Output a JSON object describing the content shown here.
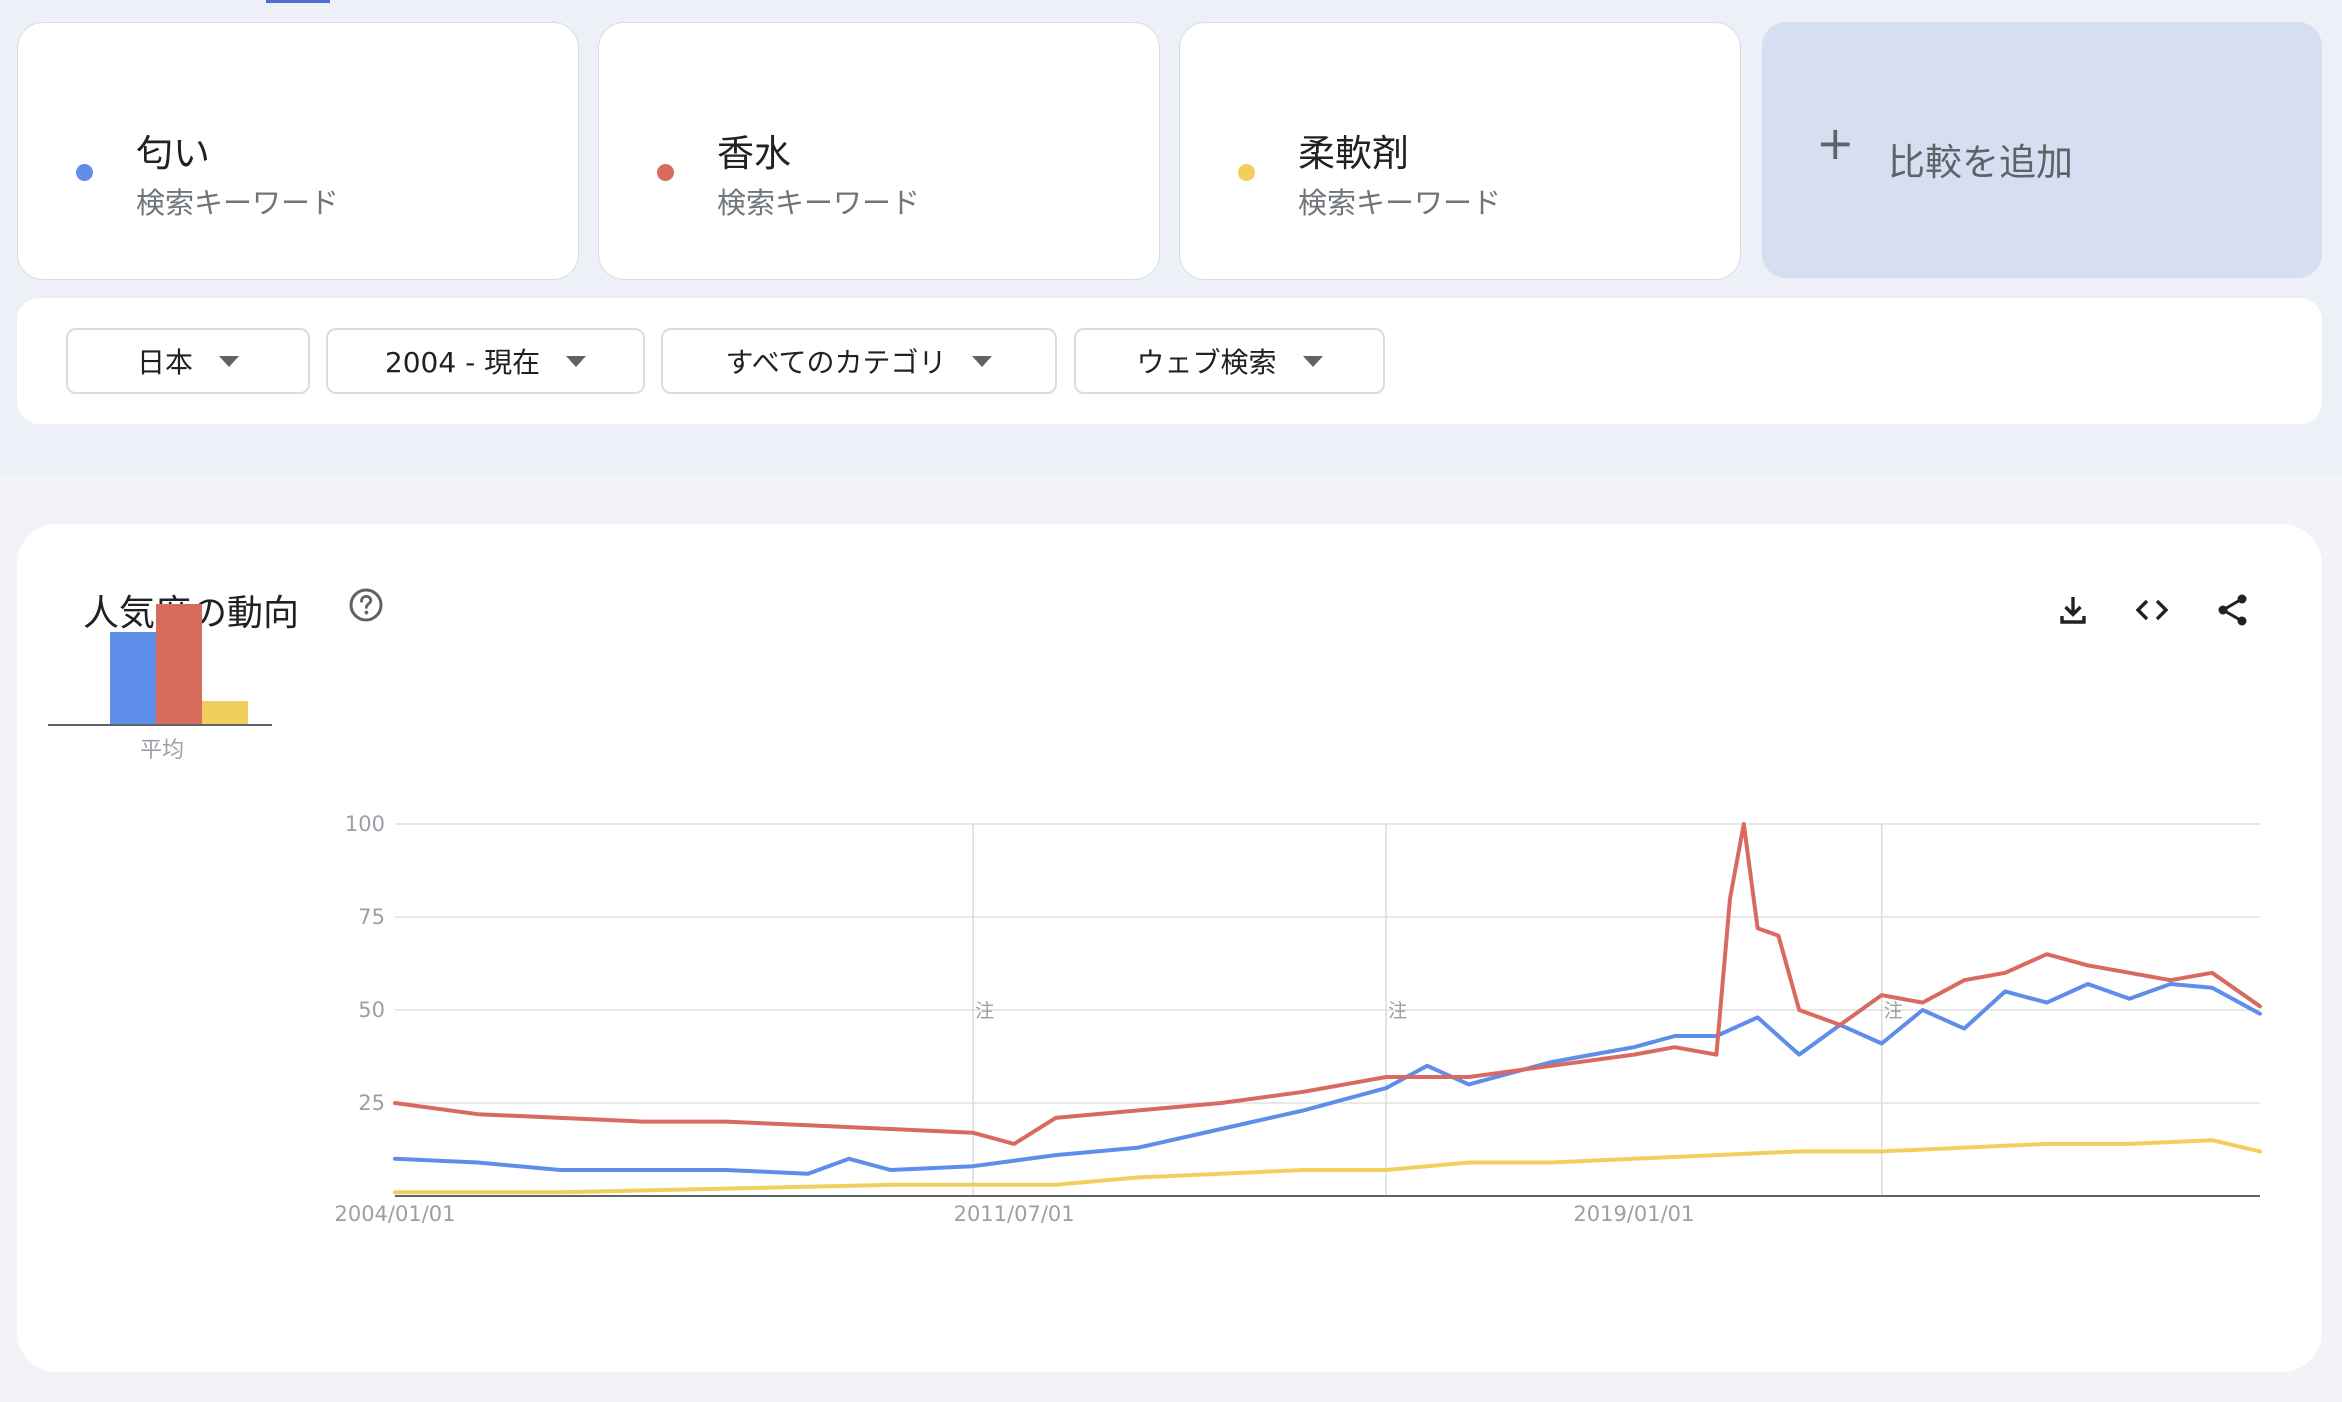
{
  "keywords": [
    {
      "term": "匂い",
      "type": "検索キーワード",
      "color": "#5f8dea"
    },
    {
      "term": "香水",
      "type": "検索キーワード",
      "color": "#d86a5e"
    },
    {
      "term": "柔軟剤",
      "type": "検索キーワード",
      "color": "#f2ce5e"
    }
  ],
  "add_compare": {
    "plus": "+",
    "label": "比較を追加"
  },
  "filters": {
    "region": "日本",
    "period": "2004 - 現在",
    "category": "すべてのカテゴリ",
    "search_type": "ウェブ検索"
  },
  "panel": {
    "title": "人気度の動向",
    "help_icon": "help-circle-icon",
    "actions": [
      "download-icon",
      "embed-code-icon",
      "share-icon"
    ]
  },
  "averages": {
    "label": "平均",
    "values": [
      26,
      34,
      7
    ]
  },
  "chart_data": {
    "type": "line",
    "y_ticks": [
      "100",
      "75",
      "50",
      "25"
    ],
    "ylim": [
      0,
      100
    ],
    "x_tick_labels": [
      "2004/01/01",
      "2011/07/01",
      "2019/01/01"
    ],
    "x_tick_dates": [
      "2004-01-01",
      "2011-07-01",
      "2019-01-01"
    ],
    "x_range": [
      "2004-01-01",
      "2026-08-01"
    ],
    "note_marker": "注",
    "note_dates": [
      "2011-01-01",
      "2016-01-01",
      "2022-01-01"
    ],
    "grid": true,
    "series": [
      {
        "name": "匂い",
        "color": "#5f8dea",
        "points": [
          [
            "2004-01-01",
            10
          ],
          [
            "2005-01-01",
            9
          ],
          [
            "2006-01-01",
            7
          ],
          [
            "2007-01-01",
            7
          ],
          [
            "2008-01-01",
            7
          ],
          [
            "2009-01-01",
            6
          ],
          [
            "2009-07-01",
            10
          ],
          [
            "2010-01-01",
            7
          ],
          [
            "2011-01-01",
            8
          ],
          [
            "2012-01-01",
            11
          ],
          [
            "2013-01-01",
            13
          ],
          [
            "2014-01-01",
            18
          ],
          [
            "2015-01-01",
            23
          ],
          [
            "2016-01-01",
            29
          ],
          [
            "2016-07-01",
            35
          ],
          [
            "2017-01-01",
            30
          ],
          [
            "2018-01-01",
            36
          ],
          [
            "2018-07-01",
            38
          ],
          [
            "2019-01-01",
            40
          ],
          [
            "2019-07-01",
            43
          ],
          [
            "2020-01-01",
            43
          ],
          [
            "2020-07-01",
            48
          ],
          [
            "2021-01-01",
            38
          ],
          [
            "2021-07-01",
            46
          ],
          [
            "2022-01-01",
            41
          ],
          [
            "2022-07-01",
            50
          ],
          [
            "2023-01-01",
            45
          ],
          [
            "2023-07-01",
            55
          ],
          [
            "2024-01-01",
            52
          ],
          [
            "2024-07-01",
            57
          ],
          [
            "2025-01-01",
            53
          ],
          [
            "2025-07-01",
            57
          ],
          [
            "2026-01-01",
            56
          ],
          [
            "2026-08-01",
            49
          ]
        ]
      },
      {
        "name": "香水",
        "color": "#d86a5e",
        "points": [
          [
            "2004-01-01",
            25
          ],
          [
            "2005-01-01",
            22
          ],
          [
            "2006-01-01",
            21
          ],
          [
            "2007-01-01",
            20
          ],
          [
            "2008-01-01",
            20
          ],
          [
            "2009-01-01",
            19
          ],
          [
            "2010-01-01",
            18
          ],
          [
            "2011-01-01",
            17
          ],
          [
            "2011-07-01",
            14
          ],
          [
            "2012-01-01",
            21
          ],
          [
            "2013-01-01",
            23
          ],
          [
            "2014-01-01",
            25
          ],
          [
            "2015-01-01",
            28
          ],
          [
            "2016-01-01",
            32
          ],
          [
            "2017-01-01",
            32
          ],
          [
            "2018-01-01",
            35
          ],
          [
            "2019-01-01",
            38
          ],
          [
            "2019-07-01",
            40
          ],
          [
            "2020-01-01",
            38
          ],
          [
            "2020-03-01",
            80
          ],
          [
            "2020-05-01",
            100
          ],
          [
            "2020-07-01",
            72
          ],
          [
            "2020-10-01",
            70
          ],
          [
            "2021-01-01",
            50
          ],
          [
            "2021-07-01",
            46
          ],
          [
            "2022-01-01",
            54
          ],
          [
            "2022-07-01",
            52
          ],
          [
            "2023-01-01",
            58
          ],
          [
            "2023-07-01",
            60
          ],
          [
            "2024-01-01",
            65
          ],
          [
            "2024-07-01",
            62
          ],
          [
            "2025-01-01",
            60
          ],
          [
            "2025-07-01",
            58
          ],
          [
            "2026-01-01",
            60
          ],
          [
            "2026-08-01",
            51
          ]
        ]
      },
      {
        "name": "柔軟剤",
        "color": "#f2ce5e",
        "points": [
          [
            "2004-01-01",
            1
          ],
          [
            "2006-01-01",
            1
          ],
          [
            "2008-01-01",
            2
          ],
          [
            "2010-01-01",
            3
          ],
          [
            "2011-01-01",
            3
          ],
          [
            "2012-01-01",
            3
          ],
          [
            "2013-01-01",
            5
          ],
          [
            "2014-01-01",
            6
          ],
          [
            "2015-01-01",
            7
          ],
          [
            "2016-01-01",
            7
          ],
          [
            "2017-01-01",
            9
          ],
          [
            "2018-01-01",
            9
          ],
          [
            "2019-01-01",
            10
          ],
          [
            "2020-01-01",
            11
          ],
          [
            "2021-01-01",
            12
          ],
          [
            "2022-01-01",
            12
          ],
          [
            "2023-01-01",
            13
          ],
          [
            "2024-01-01",
            14
          ],
          [
            "2025-01-01",
            14
          ],
          [
            "2026-01-01",
            15
          ],
          [
            "2026-08-01",
            12
          ]
        ]
      }
    ]
  }
}
